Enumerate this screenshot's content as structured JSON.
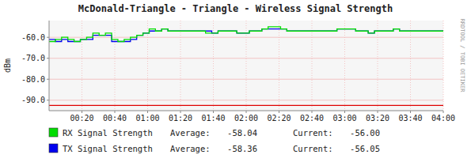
{
  "chart_data": {
    "type": "line",
    "title": "McDonald-Triangle - Triangle - Wireless Signal Strength",
    "y_label": "dBm",
    "annotations": [
      "RRDTOOL / TOBI OETIKER"
    ],
    "xlim": [
      0,
      252
    ],
    "xticks": [
      {
        "value": 21,
        "label": "00:20"
      },
      {
        "value": 42,
        "label": "00:40"
      },
      {
        "value": 63,
        "label": "01:00"
      },
      {
        "value": 84,
        "label": "01:20"
      },
      {
        "value": 105,
        "label": "01:40"
      },
      {
        "value": 126,
        "label": "02:00"
      },
      {
        "value": 147,
        "label": "02:20"
      },
      {
        "value": 168,
        "label": "02:40"
      },
      {
        "value": 189,
        "label": "03:00"
      },
      {
        "value": 210,
        "label": "03:20"
      },
      {
        "value": 231,
        "label": "03:40"
      },
      {
        "value": 252,
        "label": "04:00"
      }
    ],
    "ylim": [
      -95,
      -52
    ],
    "yticks": [
      {
        "value": -90.0,
        "label": "-90.0"
      },
      {
        "value": -80.0,
        "label": "-80.0"
      },
      {
        "value": -70.0,
        "label": "-70.0"
      },
      {
        "value": -60.0,
        "label": "-60.0"
      }
    ],
    "grid": true,
    "reference_line": -92.5,
    "series": [
      {
        "name": "TX Signal Strength",
        "color": "#0000ee",
        "stats": [
          {
            "name": "Average:",
            "value": -58.36,
            "label": "-58.36"
          },
          {
            "name": "Current:",
            "value": -56.05,
            "label": "-56.05"
          }
        ],
        "x": [
          0,
          4,
          4,
          8,
          8,
          12,
          12,
          16,
          16,
          20,
          20,
          24,
          24,
          28,
          28,
          32,
          32,
          36,
          36,
          40,
          40,
          44,
          44,
          48,
          48,
          52,
          52,
          56,
          56,
          60,
          60,
          64,
          64,
          68,
          68,
          72,
          72,
          76,
          76,
          80,
          80,
          84,
          84,
          88,
          88,
          92,
          92,
          96,
          96,
          100,
          100,
          104,
          104,
          108,
          108,
          112,
          112,
          116,
          116,
          120,
          120,
          124,
          124,
          128,
          128,
          132,
          132,
          136,
          136,
          140,
          140,
          144,
          144,
          148,
          148,
          152,
          152,
          156,
          156,
          160,
          160,
          164,
          164,
          168,
          168,
          172,
          172,
          176,
          176,
          180,
          180,
          184,
          184,
          188,
          188,
          192,
          192,
          196,
          196,
          200,
          200,
          204,
          204,
          208,
          208,
          212,
          212,
          216,
          216,
          220,
          220,
          224,
          224,
          228,
          228,
          232,
          232,
          236,
          236,
          240,
          240,
          244,
          244,
          248,
          248,
          252
        ],
        "values": [
          -61,
          -61,
          -62,
          -62,
          -61,
          -61,
          -62,
          -62,
          -62,
          -62,
          -61,
          -61,
          -61,
          -61,
          -59,
          -59,
          -59,
          -59,
          -59,
          -59,
          -62,
          -62,
          -62,
          -62,
          -62,
          -62,
          -61,
          -61,
          -59,
          -59,
          -58,
          -58,
          -57,
          -57,
          -57,
          -57,
          -56,
          -56,
          -57,
          -57,
          -57,
          -57,
          -57,
          -57,
          -57,
          -57,
          -57,
          -57,
          -57,
          -57,
          -57,
          -57,
          -58,
          -58,
          -57,
          -57,
          -57,
          -57,
          -57,
          -57,
          -58,
          -58,
          -58,
          -58,
          -57,
          -57,
          -57,
          -57,
          -56,
          -56,
          -56,
          -56,
          -56,
          -56,
          -56,
          -56,
          -57,
          -57,
          -57,
          -57,
          -57,
          -57,
          -57,
          -57,
          -57,
          -57,
          -57,
          -57,
          -57,
          -57,
          -57,
          -57,
          -56,
          -56,
          -56,
          -56,
          -56,
          -56,
          -57,
          -57,
          -57,
          -57,
          -58,
          -58,
          -57,
          -57,
          -57,
          -57,
          -57,
          -57,
          -56,
          -56,
          -57,
          -57,
          -57,
          -57,
          -57,
          -57,
          -57,
          -57,
          -57,
          -57,
          -57,
          -57,
          -57,
          -57
        ]
      },
      {
        "name": "RX Signal Strength",
        "color": "#00dd00",
        "stats": [
          {
            "name": "Average:",
            "value": -58.04,
            "label": "-58.04"
          },
          {
            "name": "Current:",
            "value": -56.0,
            "label": "-56.00"
          }
        ],
        "x": [
          0,
          4,
          4,
          8,
          8,
          12,
          12,
          16,
          16,
          20,
          20,
          24,
          24,
          28,
          28,
          32,
          32,
          36,
          36,
          40,
          40,
          44,
          44,
          48,
          48,
          52,
          52,
          56,
          56,
          60,
          60,
          64,
          64,
          68,
          68,
          72,
          72,
          76,
          76,
          80,
          80,
          84,
          84,
          88,
          88,
          92,
          92,
          96,
          96,
          100,
          100,
          104,
          104,
          108,
          108,
          112,
          112,
          116,
          116,
          120,
          120,
          124,
          124,
          128,
          128,
          132,
          132,
          136,
          136,
          140,
          140,
          144,
          144,
          148,
          148,
          152,
          152,
          156,
          156,
          160,
          160,
          164,
          164,
          168,
          168,
          172,
          172,
          176,
          176,
          180,
          180,
          184,
          184,
          188,
          188,
          192,
          192,
          196,
          196,
          200,
          200,
          204,
          204,
          208,
          208,
          212,
          212,
          216,
          216,
          220,
          220,
          224,
          224,
          228,
          228,
          232,
          232,
          236,
          236,
          240,
          240,
          244,
          244,
          248,
          248,
          252
        ],
        "values": [
          -62,
          -62,
          -61,
          -61,
          -60,
          -60,
          -61,
          -61,
          -62,
          -62,
          -61,
          -61,
          -60,
          -60,
          -58,
          -58,
          -59,
          -59,
          -58,
          -58,
          -61,
          -61,
          -62,
          -62,
          -61,
          -61,
          -60,
          -60,
          -59,
          -59,
          -58,
          -58,
          -56,
          -56,
          -57,
          -57,
          -56,
          -56,
          -57,
          -57,
          -57,
          -57,
          -57,
          -57,
          -57,
          -57,
          -57,
          -57,
          -57,
          -57,
          -58,
          -58,
          -58,
          -58,
          -57,
          -57,
          -57,
          -57,
          -57,
          -57,
          -58,
          -58,
          -58,
          -58,
          -57,
          -57,
          -57,
          -57,
          -56,
          -56,
          -55,
          -55,
          -55,
          -55,
          -56,
          -56,
          -57,
          -57,
          -57,
          -57,
          -57,
          -57,
          -57,
          -57,
          -57,
          -57,
          -57,
          -57,
          -57,
          -57,
          -57,
          -57,
          -56,
          -56,
          -56,
          -56,
          -56,
          -56,
          -57,
          -57,
          -57,
          -57,
          -58,
          -58,
          -57,
          -57,
          -57,
          -57,
          -57,
          -57,
          -56,
          -56,
          -57,
          -57,
          -57,
          -57,
          -57,
          -57,
          -57,
          -57,
          -57,
          -57,
          -57,
          -57,
          -57,
          -57
        ]
      }
    ]
  }
}
